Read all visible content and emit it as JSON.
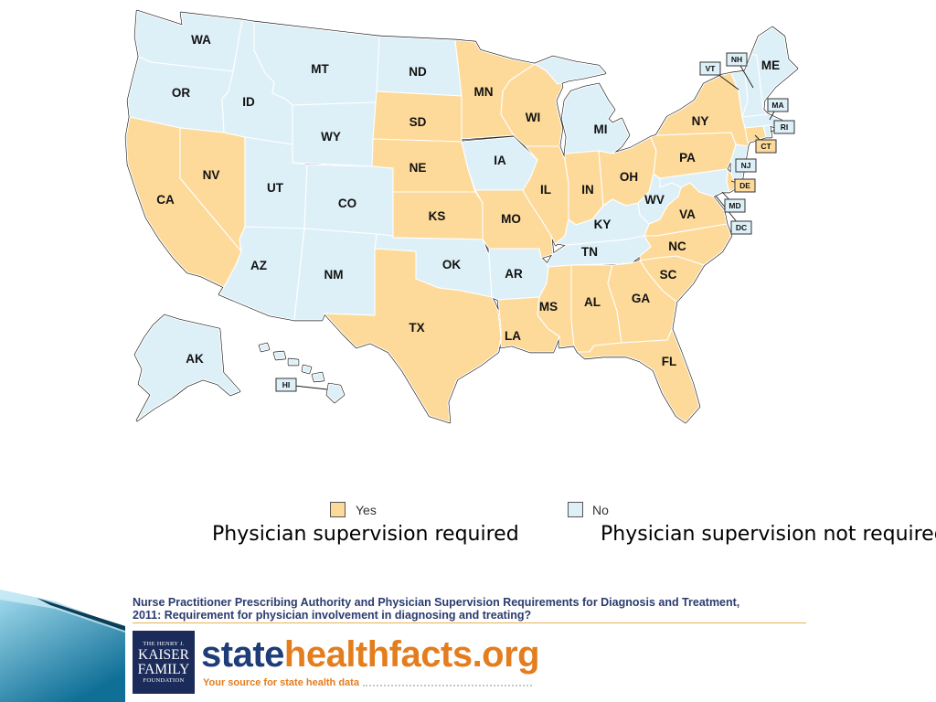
{
  "map": {
    "states": [
      {
        "code": "WA",
        "status": "No"
      },
      {
        "code": "OR",
        "status": "No"
      },
      {
        "code": "CA",
        "status": "Yes"
      },
      {
        "code": "NV",
        "status": "Yes"
      },
      {
        "code": "ID",
        "status": "No"
      },
      {
        "code": "MT",
        "status": "No"
      },
      {
        "code": "WY",
        "status": "No"
      },
      {
        "code": "UT",
        "status": "No"
      },
      {
        "code": "CO",
        "status": "No"
      },
      {
        "code": "AZ",
        "status": "No"
      },
      {
        "code": "NM",
        "status": "No"
      },
      {
        "code": "ND",
        "status": "No"
      },
      {
        "code": "SD",
        "status": "Yes"
      },
      {
        "code": "NE",
        "status": "Yes"
      },
      {
        "code": "KS",
        "status": "Yes"
      },
      {
        "code": "OK",
        "status": "No"
      },
      {
        "code": "TX",
        "status": "Yes"
      },
      {
        "code": "MN",
        "status": "Yes"
      },
      {
        "code": "IA",
        "status": "No"
      },
      {
        "code": "MO",
        "status": "Yes"
      },
      {
        "code": "AR",
        "status": "No"
      },
      {
        "code": "LA",
        "status": "Yes"
      },
      {
        "code": "WI",
        "status": "Yes"
      },
      {
        "code": "IL",
        "status": "Yes"
      },
      {
        "code": "MI",
        "status": "No"
      },
      {
        "code": "IN",
        "status": "Yes"
      },
      {
        "code": "OH",
        "status": "Yes"
      },
      {
        "code": "KY",
        "status": "No"
      },
      {
        "code": "TN",
        "status": "No"
      },
      {
        "code": "MS",
        "status": "Yes"
      },
      {
        "code": "AL",
        "status": "Yes"
      },
      {
        "code": "GA",
        "status": "Yes"
      },
      {
        "code": "FL",
        "status": "Yes"
      },
      {
        "code": "SC",
        "status": "Yes"
      },
      {
        "code": "NC",
        "status": "Yes"
      },
      {
        "code": "VA",
        "status": "Yes"
      },
      {
        "code": "WV",
        "status": "No"
      },
      {
        "code": "PA",
        "status": "Yes"
      },
      {
        "code": "NY",
        "status": "Yes"
      },
      {
        "code": "VT",
        "status": "No"
      },
      {
        "code": "NH",
        "status": "No"
      },
      {
        "code": "ME",
        "status": "No"
      },
      {
        "code": "MA",
        "status": "No"
      },
      {
        "code": "RI",
        "status": "No"
      },
      {
        "code": "CT",
        "status": "Yes"
      },
      {
        "code": "NJ",
        "status": "No"
      },
      {
        "code": "DE",
        "status": "Yes"
      },
      {
        "code": "MD",
        "status": "No"
      },
      {
        "code": "DC",
        "status": "No"
      },
      {
        "code": "AK",
        "status": "No"
      },
      {
        "code": "HI",
        "status": "No"
      }
    ]
  },
  "legend": {
    "items": [
      {
        "label": "Yes",
        "color": "#FDDA9A",
        "caption": "Physician supervision required"
      },
      {
        "label": "No",
        "color": "#DDF0F8",
        "caption": "Physician supervision not required"
      }
    ]
  },
  "source": {
    "title_line1": "Nurse Practitioner Prescribing Authority and Physician Supervision Requirements for Diagnosis and Treatment,",
    "title_line2": "2011: Requirement for physician involvement in diagnosing and treating?",
    "logo": {
      "line1": "THE HENRY J.",
      "line2": "KAISER",
      "line3": "FAMILY",
      "line4": "FOUNDATION"
    },
    "brand_part1": "state",
    "brand_part2": "healthfacts.org",
    "tagline": "Your source for state health data"
  },
  "colors": {
    "brand_navy": "#1e3c78",
    "brand_orange": "#e47d1e",
    "logo_navy": "#1b2b5a",
    "ribbon_light": "#a6def0",
    "ribbon_dark": "#0f6f97"
  }
}
